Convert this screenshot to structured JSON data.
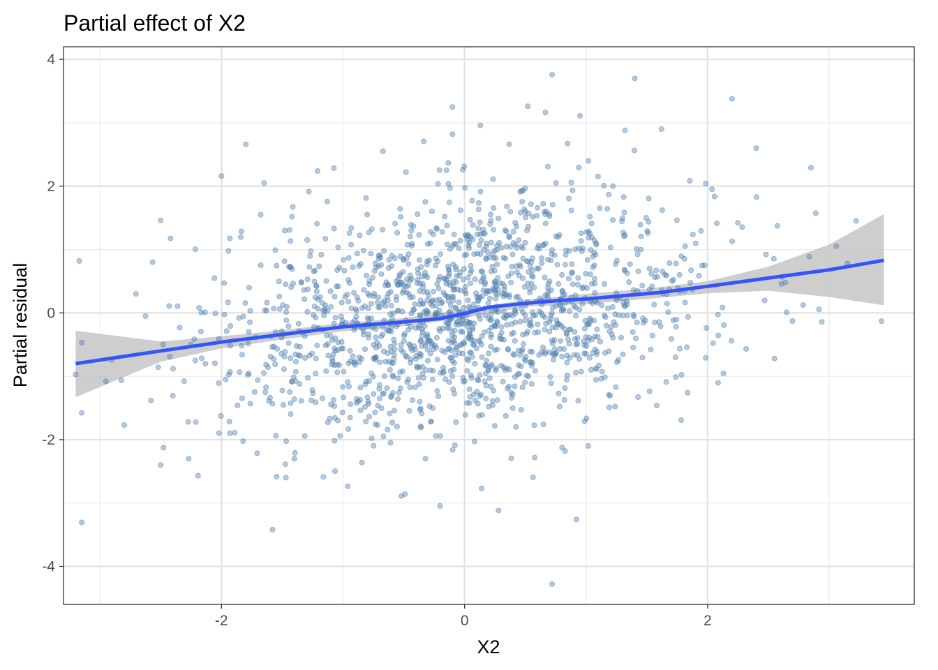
{
  "chart_data": {
    "type": "scatter",
    "title": "Partial effect of X2",
    "xlabel": "X2",
    "ylabel": "Partial residual",
    "xlim": [
      -3.3,
      3.7
    ],
    "ylim": [
      -4.6,
      4.2
    ],
    "xticks": [
      -2,
      0,
      2
    ],
    "yticks": [
      -4,
      -2,
      0,
      2,
      4
    ],
    "grid": true,
    "legend": "none",
    "colors": {
      "points": "#4f7fad",
      "smooth": "#3355ff",
      "band": "#bdbdbd"
    },
    "points_approx_count": 1600,
    "points_distribution": {
      "x_mean": 0.0,
      "x_sd": 1.0,
      "residual_sd": 0.9
    },
    "outliers": [
      [
        -3.17,
        0.82
      ],
      [
        -3.2,
        -0.97
      ],
      [
        -3.15,
        -0.47
      ],
      [
        -2.95,
        -1.08
      ],
      [
        -2.8,
        -1.77
      ],
      [
        -2.5,
        1.46
      ],
      [
        -2.5,
        -2.4
      ],
      [
        -2.27,
        -2.3
      ],
      [
        -2.0,
        2.16
      ],
      [
        -1.8,
        2.66
      ],
      [
        -1.65,
        2.05
      ],
      [
        -1.58,
        -3.42
      ],
      [
        -1.47,
        -2.6
      ],
      [
        -1.21,
        2.24
      ],
      [
        -0.52,
        -2.89
      ],
      [
        -0.1,
        3.25
      ],
      [
        -0.1,
        2.82
      ],
      [
        0.13,
        2.96
      ],
      [
        0.14,
        -2.77
      ],
      [
        0.28,
        -3.12
      ],
      [
        0.52,
        3.26
      ],
      [
        0.72,
        3.76
      ],
      [
        0.72,
        -4.28
      ],
      [
        0.92,
        -3.26
      ],
      [
        0.95,
        3.11
      ],
      [
        1.4,
        3.7
      ],
      [
        1.32,
        2.88
      ],
      [
        1.62,
        2.9
      ],
      [
        2.2,
        3.38
      ],
      [
        2.4,
        2.6
      ],
      [
        2.85,
        2.29
      ],
      [
        2.55,
        -0.72
      ],
      [
        2.65,
        0.01
      ],
      [
        3.43,
        -0.13
      ],
      [
        3.15,
        0.78
      ]
    ],
    "smooth": {
      "x": [
        -3.2,
        -2.5,
        -2.0,
        -1.5,
        -1.0,
        -0.5,
        -0.2,
        0.0,
        0.2,
        0.5,
        0.8,
        1.0,
        1.3,
        1.6,
        2.0,
        2.5,
        3.0,
        3.45
      ],
      "y": [
        -0.8,
        -0.6,
        -0.46,
        -0.34,
        -0.22,
        -0.14,
        -0.09,
        -0.01,
        0.09,
        0.15,
        0.2,
        0.22,
        0.27,
        0.32,
        0.42,
        0.55,
        0.68,
        0.83
      ]
    },
    "band": {
      "x": [
        -3.2,
        -2.5,
        -2.0,
        -1.5,
        -1.0,
        -0.5,
        0.0,
        0.5,
        1.0,
        1.5,
        2.0,
        2.5,
        3.0,
        3.45
      ],
      "upper": [
        -0.28,
        -0.45,
        -0.37,
        -0.27,
        -0.16,
        -0.08,
        0.05,
        0.21,
        0.3,
        0.38,
        0.5,
        0.73,
        1.08,
        1.56
      ],
      "lower": [
        -1.33,
        -0.77,
        -0.56,
        -0.42,
        -0.29,
        -0.21,
        -0.08,
        0.1,
        0.14,
        0.22,
        0.31,
        0.35,
        0.25,
        0.12
      ]
    }
  }
}
